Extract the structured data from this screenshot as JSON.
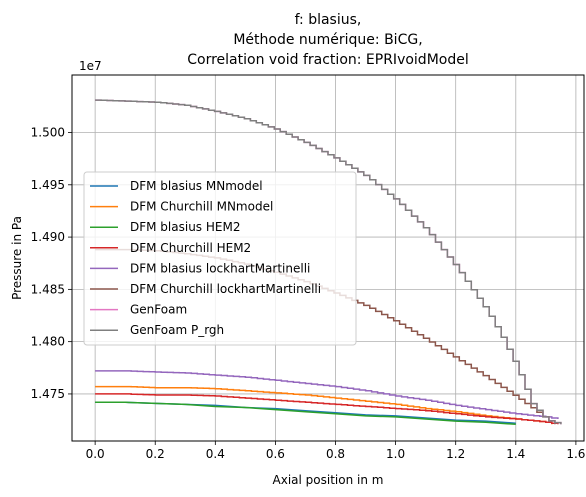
{
  "chart_data": {
    "type": "line",
    "title_lines": [
      "f: blasius,",
      "Méthode numérique: BiCG,",
      "Correlation void fraction: EPRIvoidModel"
    ],
    "xlabel": "Axial position in m",
    "ylabel": "Pressure in Pa",
    "y_offset_label": "1e7",
    "xlim": [
      -0.077,
      1.627
    ],
    "ylim": [
      1.4705,
      1.5055
    ],
    "x_ticks": [
      "0.0",
      "0.2",
      "0.4",
      "0.6",
      "0.8",
      "1.0",
      "1.2",
      "1.4",
      "1.6"
    ],
    "y_ticks": [
      "1.475",
      "1.480",
      "1.485",
      "1.490",
      "1.495",
      "1.500"
    ],
    "grid": true,
    "legend_position": "center-left",
    "series": [
      {
        "name": "DFM blasius MNmodel",
        "color": "#1f77b4",
        "step": false,
        "x": [
          0.0,
          0.1,
          0.2,
          0.3,
          0.4,
          0.5,
          0.6,
          0.7,
          0.8,
          0.9,
          1.0,
          1.1,
          1.2,
          1.3,
          1.4
        ],
        "y": [
          1.4742,
          1.4742,
          1.4741,
          1.474,
          1.4739,
          1.4737,
          1.4736,
          1.4734,
          1.4732,
          1.473,
          1.4729,
          1.4727,
          1.4725,
          1.4724,
          1.4722
        ]
      },
      {
        "name": "DFM Churchill MNmodel",
        "color": "#ff7f0e",
        "step": true,
        "x": [
          0.0,
          0.1,
          0.2,
          0.3,
          0.4,
          0.5,
          0.6,
          0.7,
          0.8,
          0.9,
          1.0,
          1.1,
          1.2,
          1.3,
          1.4,
          1.5,
          1.52
        ],
        "y": [
          1.4757,
          1.4757,
          1.4756,
          1.4756,
          1.4755,
          1.4753,
          1.4751,
          1.4749,
          1.4746,
          1.4743,
          1.474,
          1.4736,
          1.4733,
          1.4729,
          1.4726,
          1.4723,
          1.4721
        ]
      },
      {
        "name": "DFM blasius HEM2",
        "color": "#2ca02c",
        "step": false,
        "x": [
          0.0,
          0.1,
          0.2,
          0.3,
          0.4,
          0.5,
          0.6,
          0.7,
          0.8,
          0.9,
          1.0,
          1.1,
          1.2,
          1.3,
          1.4
        ],
        "y": [
          1.4742,
          1.4742,
          1.4741,
          1.474,
          1.4738,
          1.4737,
          1.4735,
          1.4733,
          1.4731,
          1.4729,
          1.4728,
          1.4726,
          1.4724,
          1.4723,
          1.4721
        ]
      },
      {
        "name": "DFM Churchill HEM2",
        "color": "#d62728",
        "step": true,
        "x": [
          0.0,
          0.1,
          0.2,
          0.3,
          0.4,
          0.5,
          0.6,
          0.7,
          0.8,
          0.9,
          1.0,
          1.1,
          1.2,
          1.3,
          1.4,
          1.5,
          1.54
        ],
        "y": [
          1.475,
          1.475,
          1.4749,
          1.4749,
          1.4748,
          1.4746,
          1.4744,
          1.4742,
          1.474,
          1.4738,
          1.4736,
          1.4734,
          1.4731,
          1.4728,
          1.4726,
          1.4723,
          1.4721
        ]
      },
      {
        "name": "DFM blasius lockhartMartinelli",
        "color": "#9467bd",
        "step": true,
        "x": [
          0.0,
          0.1,
          0.2,
          0.3,
          0.4,
          0.5,
          0.6,
          0.7,
          0.8,
          0.9,
          1.0,
          1.1,
          1.2,
          1.3,
          1.4,
          1.5,
          1.54
        ],
        "y": [
          1.4772,
          1.4772,
          1.4771,
          1.477,
          1.4768,
          1.4766,
          1.4763,
          1.476,
          1.4757,
          1.4753,
          1.4748,
          1.4744,
          1.4739,
          1.4735,
          1.4731,
          1.4728,
          1.4726
        ]
      },
      {
        "name": "DFM Churchill lockhartMartinelli",
        "color": "#8c564b",
        "step": true,
        "x": [
          0.0,
          0.1,
          0.2,
          0.3,
          0.4,
          0.5,
          0.6,
          0.7,
          0.8,
          0.9,
          1.0,
          1.1,
          1.2,
          1.3,
          1.4,
          1.45,
          1.5,
          1.53
        ],
        "y": [
          1.4888,
          1.4888,
          1.4887,
          1.4884,
          1.488,
          1.4874,
          1.4866,
          1.4857,
          1.4846,
          1.4834,
          1.4819,
          1.4802,
          1.4784,
          1.4766,
          1.4747,
          1.4737,
          1.4726,
          1.4721
        ]
      },
      {
        "name": "GenFoam",
        "color": "#e377c2",
        "step": true,
        "x": [
          0.0,
          0.1,
          0.2,
          0.3,
          0.4,
          0.5,
          0.6,
          0.7,
          0.8,
          0.9,
          1.0,
          1.1,
          1.2,
          1.3,
          1.35,
          1.4,
          1.45,
          1.5,
          1.55
        ],
        "y": [
          1.5031,
          1.503,
          1.5029,
          1.5026,
          1.502,
          1.5013,
          1.5003,
          1.499,
          1.4975,
          1.4958,
          1.4935,
          1.4907,
          1.4871,
          1.483,
          1.4805,
          1.4776,
          1.4741,
          1.4725,
          1.4721
        ]
      },
      {
        "name": "GenFoam P_rgh",
        "color": "#7f7f7f",
        "step": true,
        "x": [
          0.0,
          0.1,
          0.2,
          0.3,
          0.4,
          0.5,
          0.6,
          0.7,
          0.8,
          0.9,
          1.0,
          1.1,
          1.2,
          1.3,
          1.35,
          1.4,
          1.45,
          1.5,
          1.55
        ],
        "y": [
          1.5031,
          1.503,
          1.5029,
          1.5026,
          1.502,
          1.5013,
          1.5003,
          1.499,
          1.4975,
          1.4958,
          1.4935,
          1.4907,
          1.4871,
          1.483,
          1.4805,
          1.4776,
          1.4741,
          1.4725,
          1.4721
        ]
      }
    ]
  }
}
